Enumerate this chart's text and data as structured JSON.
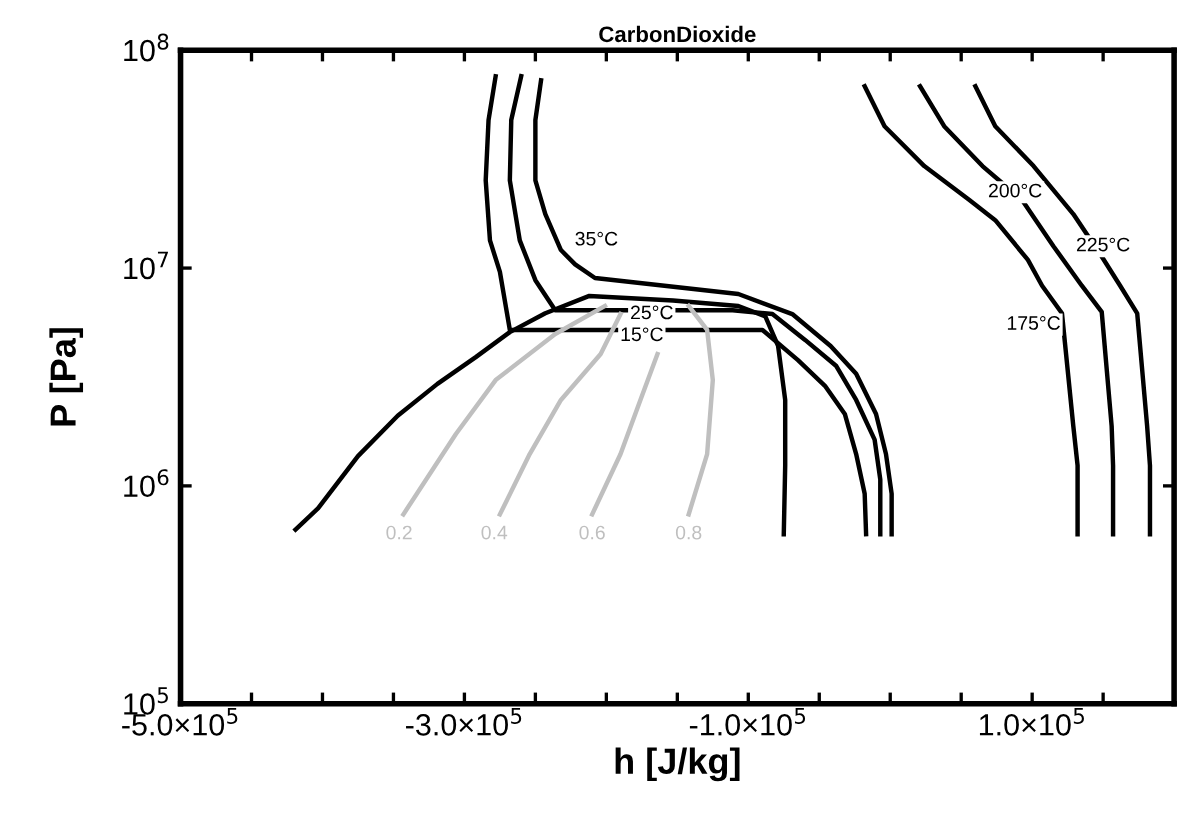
{
  "chart_data": {
    "type": "line",
    "title": "CarbonDioxide",
    "xlabel": "h [J/kg]",
    "ylabel": "P [Pa]",
    "log": "y",
    "marker": "none",
    "line_style": "solid",
    "grid": false,
    "legend": false,
    "xlim": [
      -500000,
      200000
    ],
    "xticks": [
      {
        "value": -500000,
        "label": "-5.0×10$^{5}$"
      },
      {
        "value": -450000,
        "label": null
      },
      {
        "value": -400000,
        "label": null
      },
      {
        "value": -350000,
        "label": null
      },
      {
        "value": -300000,
        "label": "-3.0×10$^{5}$"
      },
      {
        "value": -250000,
        "label": null
      },
      {
        "value": -200000,
        "label": null
      },
      {
        "value": -150000,
        "label": null
      },
      {
        "value": -100000,
        "label": "-1.0×10$^{5}$"
      },
      {
        "value": -50000,
        "label": null
      },
      {
        "value": 0,
        "label": null
      },
      {
        "value": 50000,
        "label": null
      },
      {
        "value": 100000,
        "label": "1.0×10$^{5}$"
      },
      {
        "value": 150000,
        "label": null
      }
    ],
    "ylim": [
      100000,
      100000000
    ],
    "yticks": [
      {
        "value": 100000,
        "label": "10$^{5}$"
      },
      {
        "value": 1000000,
        "label": "10$^{6}$"
      },
      {
        "value": 10000000,
        "label": "10$^{7}$"
      },
      {
        "value": 100000000,
        "label": "10$^{8}$"
      }
    ],
    "series": [
      {
        "color": "#000000",
        "x": [
          -419000,
          -403000,
          -375000,
          -347000,
          -319000,
          -292000,
          -268000,
          -243000,
          -212000,
          -153000,
          -107000,
          -88000,
          -79000,
          -74000,
          -74000,
          -75000
        ],
        "values": [
          630000,
          790000,
          1370000,
          2100000,
          2940000,
          3900000,
          5080000,
          6200000,
          7450000,
          7100000,
          6700000,
          6000000,
          4390000,
          2480000,
          1240000,
          600000
        ]
      },
      {
        "color": "#000000",
        "x": [
          -278000,
          -283000,
          -285000,
          -282000,
          -275000,
          -268000,
          -90000,
          -65000,
          -46000,
          -32000,
          -24000,
          -18000,
          -17000
        ],
        "values": [
          76000000,
          47800000,
          25300000,
          13400000,
          9600000,
          5200000,
          5200000,
          3780000,
          2880000,
          2140000,
          1400000,
          920000,
          600000
        ]
      },
      {
        "color": "#000000",
        "x": [
          -260000,
          -267000,
          -268000,
          -261000,
          -250000,
          -236000,
          -111000,
          -83000,
          -60000,
          -38000,
          -24000,
          -11000,
          -7000,
          -7000
        ],
        "values": [
          76000000,
          47800000,
          25300000,
          13400000,
          8800000,
          6400000,
          6400000,
          6150000,
          4680000,
          3550000,
          2480000,
          1630000,
          1070000,
          600000
        ]
      },
      {
        "color": "#000000",
        "x": [
          -246000,
          -250000,
          -250000,
          -243000,
          -232000,
          -222000,
          -208000,
          -107000,
          -69000,
          -42000,
          -24000,
          -10000,
          -3000,
          1000,
          1000
        ],
        "values": [
          72800000,
          47800000,
          25300000,
          17700000,
          12100000,
          10400000,
          9000000,
          7600000,
          6150000,
          4390000,
          3270000,
          2140000,
          1400000,
          920000,
          600000
        ]
      },
      {
        "color": "#000000",
        "x": [
          -18000,
          -4000,
          24000,
          56000,
          74000,
          97000,
          107000,
          121000,
          129000,
          132000,
          132000
        ],
        "values": [
          68400000,
          44800000,
          29400000,
          20500000,
          16600000,
          10900000,
          8300000,
          6200000,
          1880000,
          1240000,
          600000
        ]
      },
      {
        "color": "#000000",
        "x": [
          21000,
          38000,
          65000,
          93000,
          115000,
          135000,
          149000,
          156000,
          157000,
          157000
        ],
        "values": [
          68400000,
          44800000,
          29400000,
          20500000,
          12600000,
          8300000,
          6300000,
          1880000,
          1240000,
          600000
        ]
      },
      {
        "color": "#000000",
        "x": [
          60000,
          74000,
          101000,
          129000,
          149000,
          162000,
          174000,
          181000,
          183000,
          183000
        ],
        "values": [
          68400000,
          44800000,
          29400000,
          17700000,
          11300000,
          8300000,
          6200000,
          1880000,
          1240000,
          600000
        ]
      },
      {
        "color": "#bfbfbf",
        "x": [
          -343000,
          -306000,
          -278000,
          -236000,
          -201000
        ],
        "values": [
          740000,
          1730000,
          3060000,
          4980000,
          6700000
        ]
      },
      {
        "color": "#bfbfbf",
        "x": [
          -275000,
          -254000,
          -232000,
          -204000,
          -190000
        ],
        "values": [
          740000,
          1400000,
          2480000,
          4030000,
          6150000
        ]
      },
      {
        "color": "#bfbfbf",
        "x": [
          -210000,
          -190000,
          -176000,
          -164000
        ],
        "values": [
          740000,
          1400000,
          2480000,
          4030000
        ]
      },
      {
        "color": "#bfbfbf",
        "x": [
          -142000,
          -129000,
          -125000,
          -129000,
          -142000
        ],
        "values": [
          740000,
          1400000,
          3060000,
          5200000,
          6700000
        ]
      }
    ],
    "annotations": [
      {
        "text": "35°C",
        "x": -207000,
        "y": 13400000
      },
      {
        "text": "25°C",
        "x": -168000,
        "y": 6150000
      },
      {
        "text": "15°C",
        "x": -175000,
        "y": 4880000
      },
      {
        "text": "175°C",
        "x": 101000,
        "y": 5500000
      },
      {
        "text": "200°C",
        "x": 88000,
        "y": 22300000
      },
      {
        "text": "225°C",
        "x": 150000,
        "y": 12600000
      },
      {
        "text": "0.2",
        "x": -346000,
        "y": 600000
      },
      {
        "text": "0.4",
        "x": -279000,
        "y": 600000
      },
      {
        "text": "0.6",
        "x": -210000,
        "y": 600000
      },
      {
        "text": "0.8",
        "x": -142000,
        "y": 600000
      }
    ]
  }
}
